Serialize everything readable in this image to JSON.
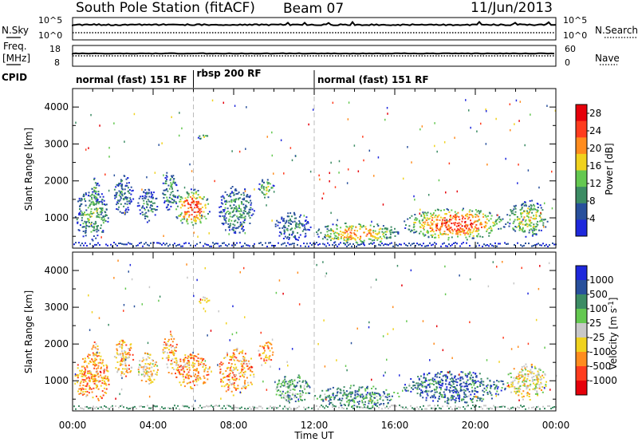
{
  "header": {
    "station": "South Pole Station (fitACF)",
    "beam": "Beam 07",
    "date": "11/Jun/2013"
  },
  "noise_panel": {
    "left_label": "N.Sky",
    "right_label": "N.Search",
    "ticks_left": [
      "10^5",
      "10^0"
    ],
    "ticks_right": [
      "10^5",
      "10^0"
    ]
  },
  "freq_panel": {
    "left_label_line1": "Freq.",
    "left_label_line2": "[MHz]",
    "right_label": "Nave",
    "ticks_left": [
      "18",
      "8"
    ],
    "ticks_right": [
      "60",
      "0"
    ]
  },
  "cpid": {
    "label": "CPID",
    "segments": [
      {
        "name": "normal (fast) 151 RF",
        "start_hour": 0.0,
        "end_hour": 6.0
      },
      {
        "name": "rbsp 200 RF",
        "start_hour": 6.0,
        "end_hour": 12.0
      },
      {
        "name": "normal (fast) 151 RF",
        "start_hour": 12.0,
        "end_hour": 24.0
      }
    ]
  },
  "chart_data": [
    {
      "type": "heatmap",
      "title": "Power",
      "xlabel": "Time UT",
      "ylabel": "Slant Range [km]",
      "x_ticks": [
        "00:00",
        "04:00",
        "08:00",
        "12:00",
        "16:00",
        "20:00",
        "00:00"
      ],
      "x_range_hours": [
        0,
        24
      ],
      "y_ticks": [
        1000,
        2000,
        3000,
        4000
      ],
      "ylim": [
        180,
        4500
      ],
      "colorbar": {
        "label": "Power [dB]",
        "ticks": [
          4,
          8,
          12,
          16,
          20,
          24,
          28
        ],
        "range": [
          0,
          30
        ],
        "colors": [
          "#1e28dc",
          "#28509c",
          "#3c8c64",
          "#64c850",
          "#f0d21e",
          "#ff8c1e",
          "#ff3c1e",
          "#e6000a"
        ]
      },
      "patches": [
        {
          "t0": 0.1,
          "t1": 1.8,
          "r0": 400,
          "r1": 1800,
          "level": 0.42
        },
        {
          "t0": 0.9,
          "t1": 1.3,
          "r0": 1400,
          "r1": 2100,
          "level": 0.5
        },
        {
          "t0": 2.0,
          "t1": 3.0,
          "r0": 1100,
          "r1": 2200,
          "level": 0.3
        },
        {
          "t0": 3.2,
          "t1": 4.2,
          "r0": 900,
          "r1": 1800,
          "level": 0.3
        },
        {
          "t0": 4.4,
          "t1": 5.2,
          "r0": 1200,
          "r1": 2300,
          "level": 0.35
        },
        {
          "t0": 5.0,
          "t1": 6.8,
          "r0": 800,
          "r1": 1800,
          "level": 0.85
        },
        {
          "t0": 6.2,
          "t1": 6.8,
          "r0": 3100,
          "r1": 3300,
          "level": 0.45
        },
        {
          "t0": 7.2,
          "t1": 9.0,
          "r0": 600,
          "r1": 1900,
          "level": 0.35
        },
        {
          "t0": 9.2,
          "t1": 10.0,
          "r0": 1500,
          "r1": 2100,
          "level": 0.5
        },
        {
          "t0": 10.0,
          "t1": 11.8,
          "r0": 400,
          "r1": 1200,
          "level": 0.3
        },
        {
          "t0": 12.0,
          "t1": 16.2,
          "r0": 300,
          "r1": 900,
          "level": 0.7
        },
        {
          "t0": 16.4,
          "t1": 21.5,
          "r0": 400,
          "r1": 1300,
          "level": 0.85
        },
        {
          "t0": 21.5,
          "t1": 23.6,
          "r0": 500,
          "r1": 1500,
          "level": 0.55
        }
      ]
    },
    {
      "type": "heatmap",
      "title": "Velocity",
      "xlabel": "Time UT",
      "ylabel": "Slant Range [km]",
      "x_ticks": [
        "00:00",
        "04:00",
        "08:00",
        "12:00",
        "16:00",
        "20:00",
        "00:00"
      ],
      "x_range_hours": [
        0,
        24
      ],
      "y_ticks": [
        1000,
        2000,
        3000,
        4000
      ],
      "ylim": [
        180,
        4500
      ],
      "colorbar": {
        "label": "Velocity [m s^-1]",
        "ticks": [
          "1000",
          "500",
          "100",
          "25",
          "-25",
          "-100",
          "-500",
          "-1000"
        ],
        "colors": [
          "#1e28dc",
          "#28509c",
          "#3c8c64",
          "#64c850",
          "#c8c8c8",
          "#f0d21e",
          "#ff8c1e",
          "#ff3c1e",
          "#e6000a"
        ]
      },
      "patches": [
        {
          "t0": 0.1,
          "t1": 1.8,
          "r0": 400,
          "r1": 1800,
          "level": 0.72
        },
        {
          "t0": 0.9,
          "t1": 1.3,
          "r0": 1400,
          "r1": 2100,
          "level": 0.7
        },
        {
          "t0": 2.0,
          "t1": 3.0,
          "r0": 1100,
          "r1": 2200,
          "level": 0.65
        },
        {
          "t0": 3.2,
          "t1": 4.2,
          "r0": 900,
          "r1": 1800,
          "level": 0.6
        },
        {
          "t0": 4.4,
          "t1": 5.2,
          "r0": 1200,
          "r1": 2300,
          "level": 0.65
        },
        {
          "t0": 5.0,
          "t1": 6.8,
          "r0": 800,
          "r1": 1800,
          "level": 0.7
        },
        {
          "t0": 6.2,
          "t1": 6.8,
          "r0": 3100,
          "r1": 3300,
          "level": 0.5
        },
        {
          "t0": 7.2,
          "t1": 9.0,
          "r0": 600,
          "r1": 1900,
          "level": 0.68
        },
        {
          "t0": 9.2,
          "t1": 10.0,
          "r0": 1500,
          "r1": 2100,
          "level": 0.72
        },
        {
          "t0": 10.0,
          "t1": 11.8,
          "r0": 400,
          "r1": 1200,
          "level": 0.35
        },
        {
          "t0": 12.0,
          "t1": 16.2,
          "r0": 300,
          "r1": 900,
          "level": 0.28
        },
        {
          "t0": 16.4,
          "t1": 21.5,
          "r0": 400,
          "r1": 1300,
          "level": 0.2
        },
        {
          "t0": 21.5,
          "t1": 23.6,
          "r0": 500,
          "r1": 1500,
          "level": 0.55
        }
      ]
    }
  ]
}
